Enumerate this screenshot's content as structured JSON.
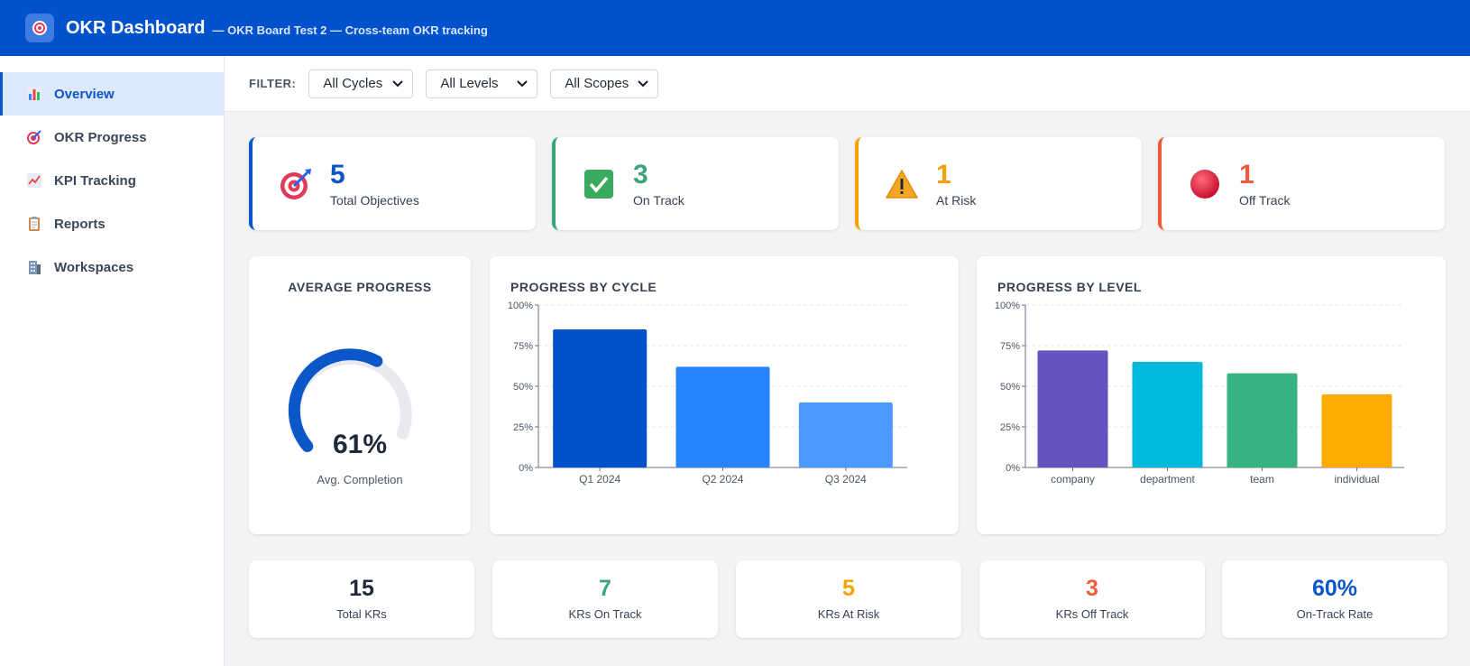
{
  "header": {
    "title": "OKR Dashboard",
    "subtitle": "— OKR Board Test 2 — Cross-team OKR tracking"
  },
  "sidebar": {
    "items": [
      {
        "label": "Overview",
        "icon": "bar-chart-icon",
        "active": true
      },
      {
        "label": "OKR Progress",
        "icon": "target-icon",
        "active": false
      },
      {
        "label": "KPI Tracking",
        "icon": "trend-chart-icon",
        "active": false
      },
      {
        "label": "Reports",
        "icon": "clipboard-icon",
        "active": false
      },
      {
        "label": "Workspaces",
        "icon": "building-icon",
        "active": false
      }
    ]
  },
  "filters": {
    "label": "FILTER:",
    "cycle": "All Cycles",
    "level": "All Levels",
    "scope": "All Scopes"
  },
  "stats": [
    {
      "value": "5",
      "label": "Total Objectives",
      "color": "#0b56c8",
      "icon": "target-icon"
    },
    {
      "value": "3",
      "label": "On Track",
      "color": "#3aa676",
      "icon": "check-icon"
    },
    {
      "value": "1",
      "label": "At Risk",
      "color": "#f5a300",
      "icon": "warning-icon"
    },
    {
      "value": "1",
      "label": "Off Track",
      "color": "#f25b3a",
      "icon": "red-circle-icon"
    }
  ],
  "average_progress": {
    "title": "AVERAGE PROGRESS",
    "value_text": "61%",
    "value": 61,
    "label": "Avg. Completion"
  },
  "chart_data": [
    {
      "type": "bar",
      "title": "PROGRESS BY CYCLE",
      "categories": [
        "Q1 2024",
        "Q2 2024",
        "Q3 2024"
      ],
      "values": [
        85,
        62,
        40
      ],
      "colors": [
        "#0052cc",
        "#2684ff",
        "#4c9aff"
      ],
      "ylim": [
        0,
        100
      ],
      "yticks": [
        "0%",
        "25%",
        "50%",
        "75%",
        "100%"
      ],
      "grid": true
    },
    {
      "type": "bar",
      "title": "PROGRESS BY LEVEL",
      "categories": [
        "company",
        "department",
        "team",
        "individual"
      ],
      "values": [
        72,
        65,
        58,
        45
      ],
      "colors": [
        "#6554c0",
        "#00b8d9",
        "#36b37e",
        "#ffab00"
      ],
      "ylim": [
        0,
        100
      ],
      "yticks": [
        "0%",
        "25%",
        "50%",
        "75%",
        "100%"
      ],
      "grid": true
    }
  ],
  "kr_stats": [
    {
      "value": "15",
      "label": "Total KRs",
      "color": "#1e293b"
    },
    {
      "value": "7",
      "label": "KRs On Track",
      "color": "#3aa676"
    },
    {
      "value": "5",
      "label": "KRs At Risk",
      "color": "#f5a300"
    },
    {
      "value": "3",
      "label": "KRs Off Track",
      "color": "#f25b3a"
    },
    {
      "value": "60%",
      "label": "On-Track Rate",
      "color": "#0b56c8"
    }
  ]
}
